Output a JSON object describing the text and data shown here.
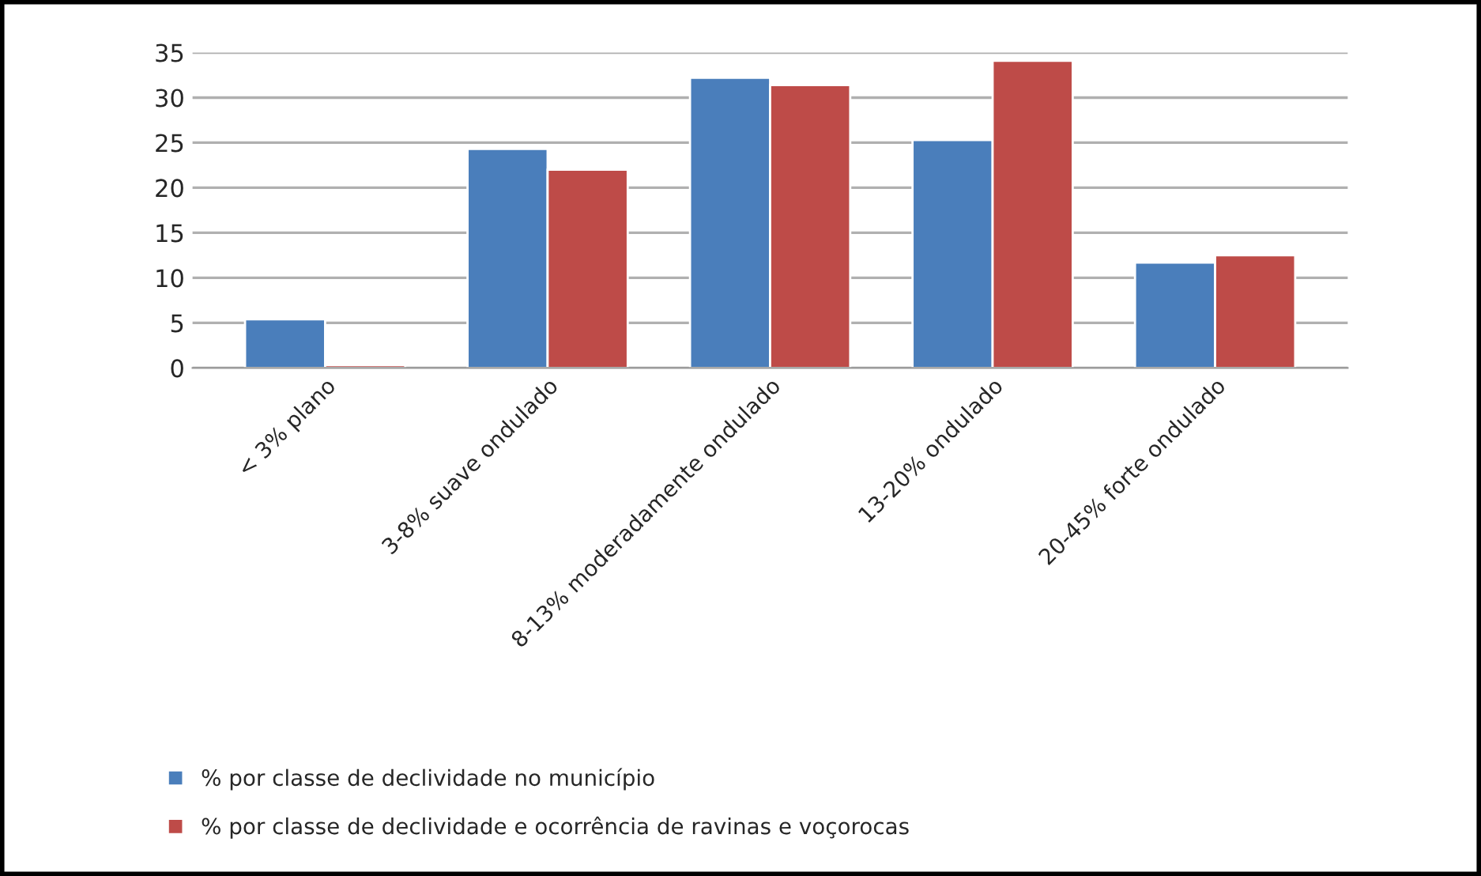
{
  "chart_data": {
    "type": "bar",
    "categories": [
      "< 3% plano",
      "3-8% suave ondulado",
      "8-13% moderadamente ondulado",
      "13-20% ondulado",
      "20-45% forte ondulado"
    ],
    "series": [
      {
        "name": "% por classe de declividade no município",
        "color": "#4a7ebb",
        "values": [
          5.4,
          24.3,
          32.2,
          25.3,
          11.7
        ]
      },
      {
        "name": "% por classe de declividade e ocorrência de ravinas e voçorocas",
        "color": "#be4b48",
        "values": [
          0.3,
          22,
          31.4,
          34.1,
          12.5
        ]
      }
    ],
    "ylim": [
      0,
      35
    ],
    "yticks": [
      0,
      5,
      10,
      15,
      20,
      25,
      30,
      35
    ],
    "grid": "y",
    "legend": "bottom left"
  }
}
